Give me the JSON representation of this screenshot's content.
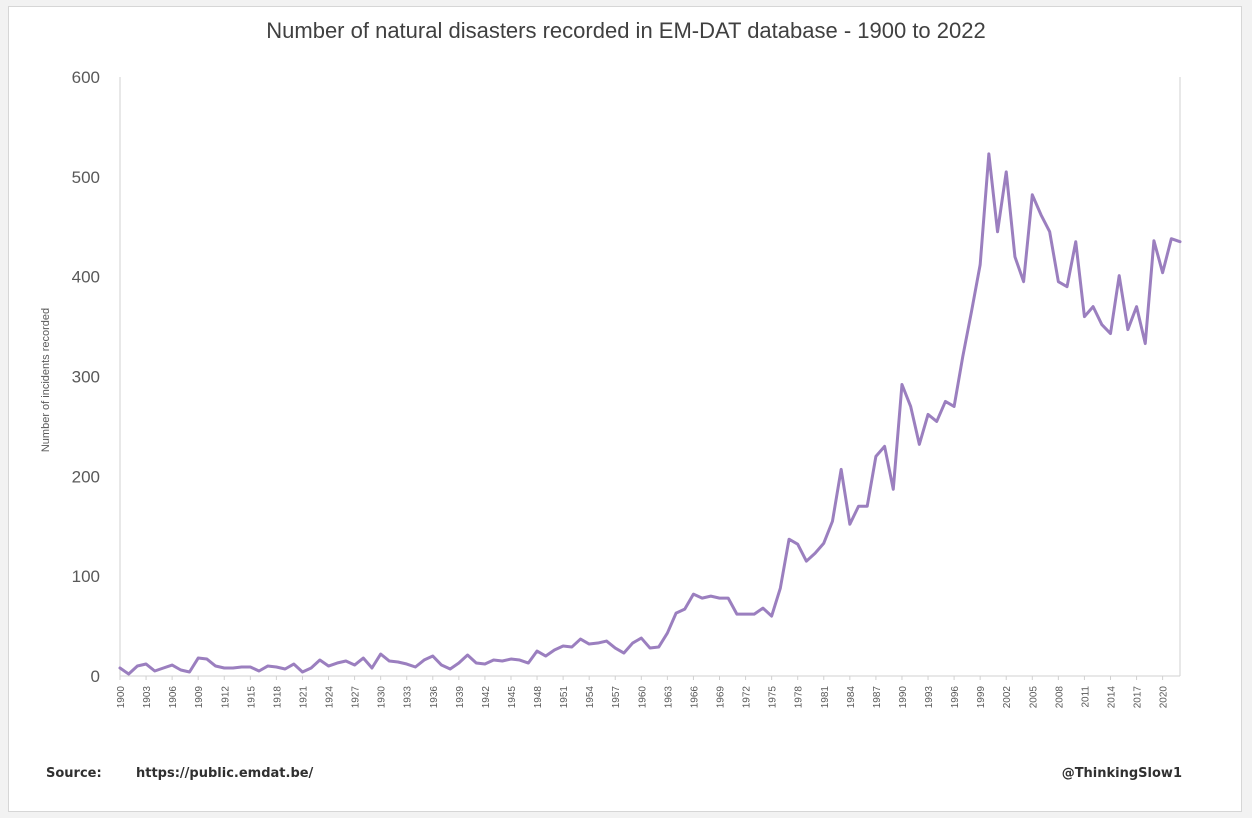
{
  "footer": {
    "source_label": "Source:",
    "source_url": "https://public.emdat.be/",
    "credit": "@ThinkingSlow1"
  },
  "chart_data": {
    "type": "line",
    "title": "Number of natural disasters recorded in EM-DAT database - 1900 to 2022",
    "xlabel": "",
    "ylabel": "Number of incidents recorded",
    "ylim": [
      0,
      600
    ],
    "yticks": [
      0,
      100,
      200,
      300,
      400,
      500,
      600
    ],
    "xlim": [
      1900,
      2022
    ],
    "xticks": [
      1900,
      1903,
      1906,
      1909,
      1912,
      1915,
      1918,
      1921,
      1924,
      1927,
      1930,
      1933,
      1936,
      1939,
      1942,
      1945,
      1948,
      1951,
      1954,
      1957,
      1960,
      1963,
      1966,
      1969,
      1972,
      1975,
      1978,
      1981,
      1984,
      1987,
      1990,
      1993,
      1996,
      1999,
      2002,
      2005,
      2008,
      2011,
      2014,
      2017,
      2020
    ],
    "grid": false,
    "legend": "none",
    "color": "#9b7fbf",
    "x": [
      1900,
      1901,
      1902,
      1903,
      1904,
      1905,
      1906,
      1907,
      1908,
      1909,
      1910,
      1911,
      1912,
      1913,
      1914,
      1915,
      1916,
      1917,
      1918,
      1919,
      1920,
      1921,
      1922,
      1923,
      1924,
      1925,
      1926,
      1927,
      1928,
      1929,
      1930,
      1931,
      1932,
      1933,
      1934,
      1935,
      1936,
      1937,
      1938,
      1939,
      1940,
      1941,
      1942,
      1943,
      1944,
      1945,
      1946,
      1947,
      1948,
      1949,
      1950,
      1951,
      1952,
      1953,
      1954,
      1955,
      1956,
      1957,
      1958,
      1959,
      1960,
      1961,
      1962,
      1963,
      1964,
      1965,
      1966,
      1967,
      1968,
      1969,
      1970,
      1971,
      1972,
      1973,
      1974,
      1975,
      1976,
      1977,
      1978,
      1979,
      1980,
      1981,
      1982,
      1983,
      1984,
      1985,
      1986,
      1987,
      1988,
      1989,
      1990,
      1991,
      1992,
      1993,
      1994,
      1995,
      1996,
      1997,
      1998,
      1999,
      2000,
      2001,
      2002,
      2003,
      2004,
      2005,
      2006,
      2007,
      2008,
      2009,
      2010,
      2011,
      2012,
      2013,
      2014,
      2015,
      2016,
      2017,
      2018,
      2019,
      2020,
      2021,
      2022
    ],
    "values": [
      8,
      2,
      10,
      12,
      5,
      8,
      11,
      6,
      4,
      18,
      17,
      10,
      8,
      8,
      9,
      9,
      5,
      10,
      9,
      7,
      12,
      4,
      8,
      16,
      10,
      13,
      15,
      11,
      18,
      8,
      22,
      15,
      14,
      12,
      9,
      16,
      20,
      11,
      7,
      13,
      21,
      13,
      12,
      16,
      15,
      17,
      16,
      13,
      25,
      20,
      26,
      30,
      29,
      37,
      32,
      33,
      35,
      28,
      23,
      33,
      38,
      28,
      29,
      43,
      63,
      67,
      82,
      78,
      80,
      78,
      78,
      62,
      62,
      62,
      68,
      60,
      88,
      137,
      132,
      115,
      123,
      133,
      155,
      207,
      152,
      170,
      170,
      220,
      230,
      187,
      292,
      270,
      232,
      262,
      255,
      275,
      270,
      320,
      365,
      412,
      523,
      445,
      505,
      420,
      395,
      482,
      462,
      445,
      395,
      390,
      435,
      360,
      370,
      352,
      343,
      401,
      347,
      370,
      333,
      436,
      404,
      438,
      435
    ]
  }
}
